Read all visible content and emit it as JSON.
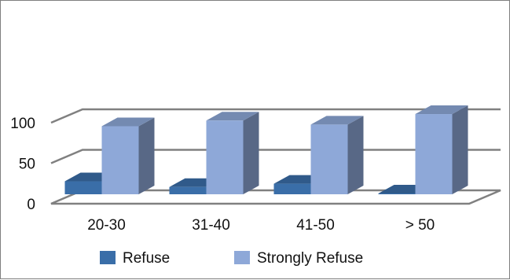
{
  "chart_data": {
    "type": "bar",
    "categories": [
      "20-30",
      "31-40",
      "41-50",
      "> 50"
    ],
    "series": [
      {
        "name": "Refuse",
        "values": [
          16,
          9,
          13,
          1
        ],
        "color": "#3a6ea8"
      },
      {
        "name": "Strongly Refuse",
        "values": [
          84,
          91,
          86,
          99
        ],
        "color": "#8ea8d8"
      }
    ],
    "ylim": [
      0,
      100
    ],
    "yticks": [
      "0",
      "50",
      "100"
    ],
    "ytick_values": [
      0,
      50,
      100
    ],
    "grid": true,
    "legend_position": "bottom",
    "title": "",
    "xlabel": "",
    "ylabel": ""
  }
}
